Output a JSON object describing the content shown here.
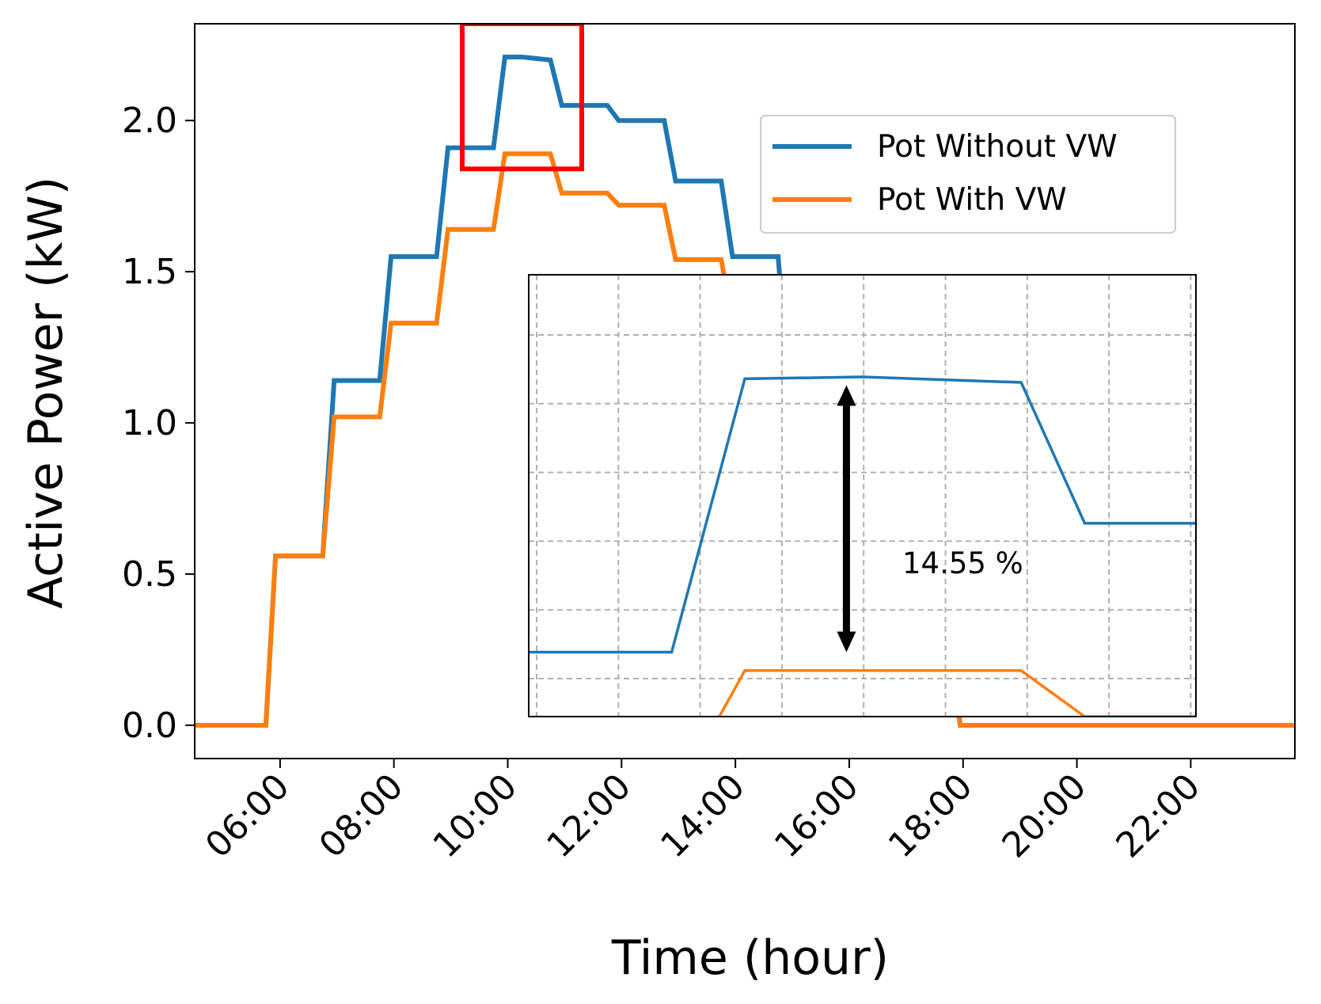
{
  "chart_data": {
    "type": "line",
    "title": "",
    "xlabel": "Time (hour)",
    "ylabel": "Active Power (kW)",
    "x_tick_labels": [
      "06:00",
      "08:00",
      "10:00",
      "12:00",
      "14:00",
      "16:00",
      "18:00",
      "20:00",
      "22:00"
    ],
    "x_ticks_hours": [
      6,
      8,
      10,
      12,
      14,
      16,
      18,
      20,
      22
    ],
    "y_ticks": [
      0.0,
      0.5,
      1.0,
      1.5,
      2.0
    ],
    "y_tick_labels": [
      "0.0",
      "0.5",
      "1.0",
      "1.5",
      "2.0"
    ],
    "xlim_hours": [
      4.5,
      23.83
    ],
    "ylim": [
      -0.11,
      2.32
    ],
    "grid": false,
    "legend": "upper right",
    "series": [
      {
        "name": "Pot Without VW",
        "color": "#1f77b4",
        "x_hours": [
          4.5,
          5.75,
          5.92,
          6.75,
          6.95,
          7.25,
          7.75,
          7.95,
          8.75,
          8.95,
          9.75,
          9.95,
          10.25,
          10.75,
          10.95,
          11.75,
          11.95,
          12.75,
          12.95,
          13.75,
          13.95,
          14.75,
          14.95,
          15.75,
          15.95,
          16.75,
          16.95,
          17.75,
          17.95,
          23.83
        ],
        "values": [
          0.0,
          0.0,
          0.56,
          0.56,
          1.14,
          1.14,
          1.14,
          1.55,
          1.55,
          1.91,
          1.91,
          2.21,
          2.21,
          2.2,
          2.05,
          2.05,
          2.0,
          2.0,
          1.8,
          1.8,
          1.55,
          1.55,
          1.08,
          1.08,
          0.62,
          0.62,
          0.3,
          0.3,
          0.0,
          0.0
        ]
      },
      {
        "name": "Pot With VW",
        "color": "#ff7f0e",
        "x_hours": [
          4.5,
          5.75,
          5.92,
          6.75,
          6.95,
          7.25,
          7.75,
          7.95,
          8.75,
          8.95,
          9.75,
          9.95,
          10.25,
          10.75,
          10.95,
          11.75,
          11.95,
          12.75,
          12.95,
          13.75,
          13.95,
          14.75,
          14.95,
          15.75,
          15.95,
          16.75,
          16.95,
          17.75,
          17.95,
          23.83
        ],
        "values": [
          0.0,
          0.0,
          0.56,
          0.56,
          1.02,
          1.02,
          1.02,
          1.33,
          1.33,
          1.64,
          1.64,
          1.89,
          1.89,
          1.89,
          1.76,
          1.76,
          1.72,
          1.72,
          1.54,
          1.54,
          1.33,
          1.33,
          0.92,
          0.92,
          0.53,
          0.53,
          0.25,
          0.25,
          0.0,
          0.0
        ]
      }
    ],
    "highlight_box": {
      "color": "#ff0000",
      "x_hours": [
        9.2,
        11.3
      ],
      "y": [
        1.84,
        2.32
      ]
    },
    "inset": {
      "grid": true,
      "x_hours": [
        9.2,
        11.3
      ],
      "y": [
        1.84,
        2.32
      ],
      "series": [
        {
          "name": "Pot Without VW",
          "color": "#1f77b4",
          "x_hours": [
            9.2,
            9.65,
            9.88,
            10.25,
            10.75,
            10.95,
            11.3
          ],
          "values": [
            1.91,
            1.91,
            2.207,
            2.209,
            2.203,
            2.05,
            2.05
          ]
        },
        {
          "name": "Pot With VW",
          "color": "#ff7f0e",
          "x_hours": [
            9.8,
            9.88,
            10.75,
            10.95,
            11.3
          ],
          "values": [
            1.84,
            1.89,
            1.89,
            1.84,
            1.84
          ]
        }
      ],
      "annotation": {
        "text": "14.55 %",
        "arrow_x_hours": 10.2,
        "arrow_y": [
          1.91,
          2.2
        ]
      }
    }
  }
}
